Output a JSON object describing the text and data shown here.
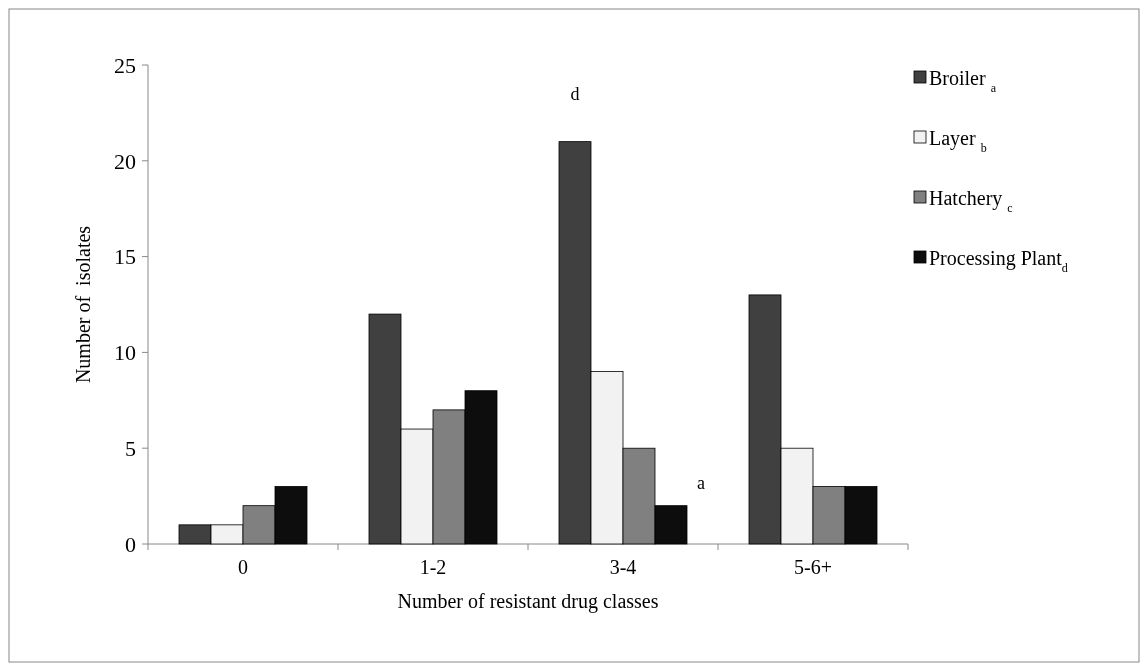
{
  "chart_data": {
    "type": "bar",
    "xlabel": "Number of resistant drug classes",
    "ylabel": "Number of  isolates",
    "categories": [
      "0",
      "1-2",
      "3-4",
      "5-6+"
    ],
    "series": [
      {
        "name": "Broiler $_{a}$",
        "color": "#404040",
        "values": [
          1,
          12,
          21,
          13
        ]
      },
      {
        "name": "Layer $_{b}$",
        "color": "#f2f2f2",
        "values": [
          1,
          6,
          9,
          5
        ]
      },
      {
        "name": "Hatchery $_{c}$",
        "color": "#808080",
        "values": [
          2,
          7,
          5,
          3
        ]
      },
      {
        "name": "Processing Plant$_{d}$",
        "color": "#0d0d0d",
        "values": [
          3,
          8,
          2,
          3
        ]
      }
    ],
    "ylim": [
      0,
      25
    ],
    "yticks": [
      0,
      5,
      10,
      15,
      20,
      25
    ],
    "grid": false,
    "legend": "right",
    "annotations": [
      "d",
      "a"
    ]
  }
}
